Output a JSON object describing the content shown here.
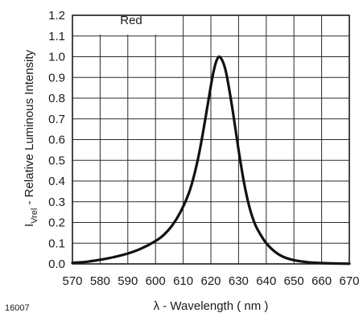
{
  "figure_id": "16007",
  "chart_data": {
    "type": "line",
    "title": "",
    "xlabel": "λ - Wavelength ( nm )",
    "ylabel_main": "I",
    "ylabel_sub": "Vrel",
    "ylabel_rest": "  - Relative Luminous Intensity",
    "xlim": [
      570,
      670
    ],
    "ylim": [
      0,
      1.2
    ],
    "x_ticks": [
      "570",
      "580",
      "590",
      "600",
      "610",
      "620",
      "630",
      "640",
      "650",
      "660",
      "670"
    ],
    "y_ticks": [
      "0.0",
      "0.1",
      "0.2",
      "0.3",
      "0.4",
      "0.5",
      "0.6",
      "0.7",
      "0.8",
      "0.9",
      "1.0",
      "1.1",
      "1.2"
    ],
    "grid": true,
    "legend_position": "top-center",
    "series": [
      {
        "name": "Red",
        "color": "#111111",
        "x": [
          570,
          575,
          580,
          585,
          590,
          595,
          600,
          603,
          606,
          609,
          612,
          614,
          616,
          618,
          620,
          621,
          622,
          623,
          624,
          625,
          626,
          628,
          630,
          632,
          634,
          636,
          638,
          640,
          643,
          646,
          650,
          655,
          660,
          665,
          670
        ],
        "y": [
          0.005,
          0.01,
          0.02,
          0.033,
          0.05,
          0.075,
          0.11,
          0.14,
          0.185,
          0.25,
          0.34,
          0.43,
          0.55,
          0.7,
          0.86,
          0.93,
          0.98,
          1.0,
          0.985,
          0.95,
          0.89,
          0.73,
          0.55,
          0.39,
          0.27,
          0.19,
          0.14,
          0.1,
          0.06,
          0.035,
          0.018,
          0.008,
          0.004,
          0.002,
          0.001
        ]
      }
    ]
  }
}
